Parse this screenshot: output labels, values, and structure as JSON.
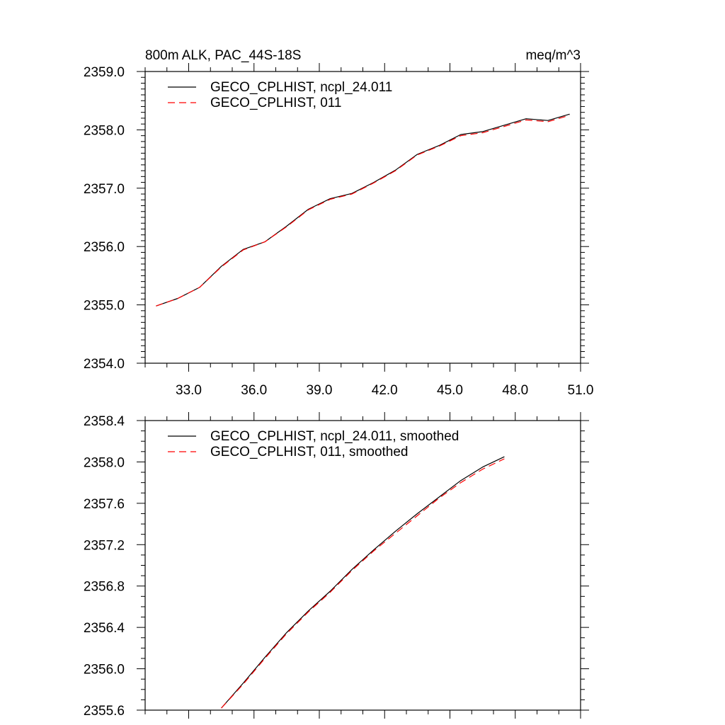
{
  "chart_data": [
    {
      "type": "line",
      "title": "800m ALK, PAC_44S-18S",
      "units": "meq/m^3",
      "xlim": [
        31.0,
        51.0
      ],
      "ylim": [
        2354.0,
        2359.0
      ],
      "x_ticks": [
        33.0,
        36.0,
        39.0,
        42.0,
        45.0,
        48.0,
        51.0
      ],
      "x_tick_labels": [
        "33.0",
        "36.0",
        "39.0",
        "42.0",
        "45.0",
        "48.0",
        "51.0"
      ],
      "y_ticks": [
        2354.0,
        2355.0,
        2356.0,
        2357.0,
        2358.0,
        2359.0
      ],
      "y_tick_labels": [
        "2354.0",
        "2355.0",
        "2356.0",
        "2357.0",
        "2358.0",
        "2359.0"
      ],
      "legend_position": "top-left",
      "series": [
        {
          "name": "GECO_CPLHIST, ncpl_24.011",
          "color": "#000000",
          "dash": "solid",
          "x": [
            31.5,
            32.5,
            33.5,
            34.5,
            35.5,
            36.5,
            37.5,
            38.5,
            39.5,
            40.5,
            41.5,
            42.5,
            43.5,
            44.5,
            45.5,
            46.5,
            47.5,
            48.5,
            49.5,
            50.5
          ],
          "y": [
            2354.98,
            2355.11,
            2355.3,
            2355.66,
            2355.95,
            2356.08,
            2356.35,
            2356.64,
            2356.82,
            2356.91,
            2357.1,
            2357.31,
            2357.58,
            2357.73,
            2357.92,
            2357.97,
            2358.08,
            2358.19,
            2358.16,
            2358.27
          ]
        },
        {
          "name": "GECO_CPLHIST, 011",
          "color": "#ff0000",
          "dash": "dashed",
          "x": [
            31.5,
            32.5,
            33.5,
            34.5,
            35.5,
            36.5,
            37.5,
            38.5,
            39.5,
            40.5,
            41.5,
            42.5,
            43.5,
            44.5,
            45.5,
            46.5,
            47.5,
            48.5,
            49.5,
            50.5
          ],
          "y": [
            2354.98,
            2355.11,
            2355.3,
            2355.65,
            2355.94,
            2356.08,
            2356.34,
            2356.63,
            2356.81,
            2356.9,
            2357.09,
            2357.3,
            2357.57,
            2357.72,
            2357.9,
            2357.95,
            2358.06,
            2358.17,
            2358.14,
            2358.25
          ]
        }
      ]
    },
    {
      "type": "line",
      "title": "",
      "xlim": [
        31.0,
        51.0
      ],
      "ylim": [
        2355.6,
        2358.4
      ],
      "x_ticks": [
        33.0,
        36.0,
        39.0,
        42.0,
        45.0,
        48.0,
        51.0
      ],
      "x_tick_labels": [],
      "y_ticks": [
        2355.6,
        2356.0,
        2356.4,
        2356.8,
        2357.2,
        2357.6,
        2358.0,
        2358.4
      ],
      "y_tick_labels": [
        "2355.6",
        "2356.0",
        "2356.4",
        "2356.8",
        "2357.2",
        "2357.6",
        "2358.0",
        "2358.4"
      ],
      "legend_position": "top-left",
      "series": [
        {
          "name": "GECO_CPLHIST, ncpl_24.011, smoothed",
          "color": "#000000",
          "dash": "solid",
          "x": [
            34.5,
            35.5,
            36.5,
            37.5,
            38.5,
            39.5,
            40.5,
            41.5,
            42.5,
            43.5,
            44.5,
            45.5,
            46.5,
            47.5
          ],
          "y": [
            2355.62,
            2355.86,
            2356.11,
            2356.35,
            2356.56,
            2356.75,
            2356.96,
            2357.15,
            2357.33,
            2357.5,
            2357.66,
            2357.82,
            2357.95,
            2358.05
          ]
        },
        {
          "name": "GECO_CPLHIST, 011, smoothed",
          "color": "#ff0000",
          "dash": "dashed",
          "x": [
            34.5,
            35.5,
            36.5,
            37.5,
            38.5,
            39.5,
            40.5,
            41.5,
            42.5,
            43.5,
            44.5,
            45.5,
            46.5,
            47.5
          ],
          "y": [
            2355.62,
            2355.85,
            2356.1,
            2356.34,
            2356.55,
            2356.74,
            2356.95,
            2357.14,
            2357.31,
            2357.48,
            2357.65,
            2357.8,
            2357.93,
            2358.03
          ]
        }
      ]
    }
  ]
}
